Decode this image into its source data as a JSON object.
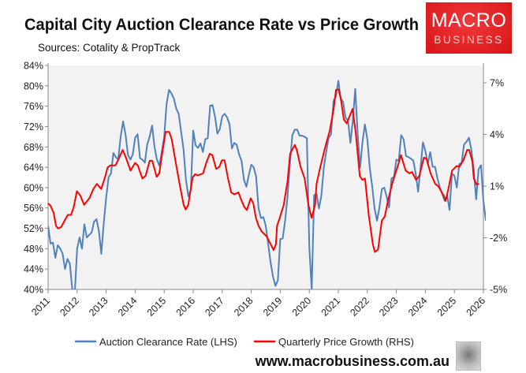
{
  "header": {
    "title": "Capital City Auction Clearance Rate vs Price Growth",
    "subtitle": "Sources: Cotality & PropTrack"
  },
  "logo": {
    "line1": "MACRO",
    "line2": "BUSINESS",
    "color": "#e3191c"
  },
  "footer": {
    "url": "www.macrobusiness.com.au"
  },
  "chart_data": {
    "type": "line",
    "title": "Capital City Auction Clearance Rate vs Price Growth",
    "xlim": [
      2011,
      2026
    ],
    "x_ticks": [
      "2011",
      "2012",
      "2013",
      "2014",
      "2015",
      "2016",
      "2017",
      "2018",
      "2019",
      "2020",
      "2021",
      "2022",
      "2023",
      "2024",
      "2025",
      "2026"
    ],
    "y_left": {
      "lim": [
        40,
        84
      ],
      "ticks": [
        "40%",
        "44%",
        "48%",
        "52%",
        "56%",
        "60%",
        "64%",
        "68%",
        "72%",
        "76%",
        "80%",
        "84%"
      ]
    },
    "y_right": {
      "lim": [
        -5,
        8
      ],
      "ticks": [
        "-5%",
        "-2%",
        "1%",
        "4%",
        "7%"
      ]
    },
    "grid": false,
    "legend": "bottom",
    "series": [
      {
        "name": "Auction Clearance Rate (LHS)",
        "axis": "left",
        "color": "#4f81bd",
        "start": "2011-01",
        "frequency": "monthly",
        "values": [
          52.5,
          49,
          49.2,
          46.2,
          48.7,
          48,
          47,
          44,
          46,
          45,
          40,
          39,
          48,
          50.2,
          48,
          52.8,
          50.2,
          50.7,
          51.2,
          53.3,
          53.8,
          51.5,
          47,
          53,
          58,
          62,
          62.8,
          66.8,
          66,
          65.5,
          70,
          73,
          70.5,
          66.5,
          65.5,
          66.5,
          69.8,
          70.5,
          65.8,
          65.5,
          64.9,
          68.5,
          70,
          72.2,
          68,
          65.5,
          64.3,
          67,
          70,
          76.5,
          79.2,
          78.5,
          77.5,
          75.5,
          74.5,
          71,
          67.5,
          61.5,
          58.3,
          59.5,
          71.2,
          68.3,
          67.8,
          68.7,
          67,
          69.5,
          69.7,
          76.1,
          76.2,
          74,
          70.6,
          71.5,
          74,
          74.5,
          73.8,
          72.5,
          67.7,
          68.8,
          68.4,
          66.5,
          65.2,
          61.5,
          60.2,
          62.5,
          64.5,
          64,
          62.2,
          56,
          54,
          54.2,
          52.5,
          48.9,
          45.3,
          42.5,
          40.7,
          41.8,
          49.9,
          50,
          53.5,
          58.2,
          64.9,
          70.3,
          71.4,
          71.4,
          70.2,
          70.2,
          70,
          69.7,
          48.4,
          40,
          58.5,
          58.8,
          55.9,
          58.5,
          63.9,
          67,
          69.8,
          70.5,
          77,
          77.9,
          81,
          77.5,
          76.8,
          73.7,
          73.2,
          68.8,
          73.2,
          79.4,
          70.6,
          63.9,
          69,
          72.4,
          69.5,
          63.9,
          60.3,
          55.9,
          53.5,
          56.1,
          59.7,
          60,
          58.2,
          56.1,
          61.8,
          62.1,
          65.5,
          65.3,
          70.3,
          69.5,
          66.2,
          66,
          65.7,
          65.3,
          62.8,
          59.2,
          63.9,
          68.9,
          67.2,
          64.6,
          67,
          64.1,
          64.1,
          61.8,
          60,
          58.7,
          57.4,
          58.5,
          55.6,
          62.8,
          62.3,
          60,
          64.6,
          64.9,
          68.5,
          69,
          69.8,
          67.5,
          63.4,
          57.7,
          63.6,
          64.4,
          57.4,
          53.5
        ]
      },
      {
        "name": "Quarterly Price Growth (RHS)",
        "axis": "right",
        "color": "#ff0000",
        "points": [
          [
            2011.0,
            0.0
          ],
          [
            2011.09,
            -0.16
          ],
          [
            2011.19,
            -0.55
          ],
          [
            2011.27,
            -1.3
          ],
          [
            2011.34,
            -1.46
          ],
          [
            2011.45,
            -1.38
          ],
          [
            2011.57,
            -1.0
          ],
          [
            2011.68,
            -0.67
          ],
          [
            2011.79,
            -0.67
          ],
          [
            2011.88,
            -0.24
          ],
          [
            2011.99,
            0.7
          ],
          [
            2012.11,
            0.45
          ],
          [
            2012.24,
            -0.09
          ],
          [
            2012.42,
            0.29
          ],
          [
            2012.56,
            0.83
          ],
          [
            2012.68,
            1.13
          ],
          [
            2012.83,
            0.83
          ],
          [
            2012.96,
            1.51
          ],
          [
            2013.05,
            2.08
          ],
          [
            2013.14,
            2.2
          ],
          [
            2013.32,
            2.2
          ],
          [
            2013.41,
            2.5
          ],
          [
            2013.57,
            3.1
          ],
          [
            2013.68,
            2.66
          ],
          [
            2013.84,
            1.9
          ],
          [
            2014.0,
            2.35
          ],
          [
            2014.09,
            2.2
          ],
          [
            2014.25,
            1.44
          ],
          [
            2014.36,
            1.6
          ],
          [
            2014.5,
            2.47
          ],
          [
            2014.59,
            2.47
          ],
          [
            2014.74,
            1.54
          ],
          [
            2014.83,
            1.74
          ],
          [
            2014.95,
            3.1
          ],
          [
            2015.05,
            4.15
          ],
          [
            2015.17,
            4.15
          ],
          [
            2015.26,
            3.72
          ],
          [
            2015.4,
            2.35
          ],
          [
            2015.53,
            1.13
          ],
          [
            2015.67,
            -0.09
          ],
          [
            2015.74,
            -0.36
          ],
          [
            2015.83,
            -0.09
          ],
          [
            2015.98,
            1.51
          ],
          [
            2016.07,
            1.69
          ],
          [
            2016.16,
            1.62
          ],
          [
            2016.34,
            1.74
          ],
          [
            2016.45,
            2.35
          ],
          [
            2016.57,
            2.88
          ],
          [
            2016.66,
            2.8
          ],
          [
            2016.79,
            2.0
          ],
          [
            2016.9,
            2.12
          ],
          [
            2016.99,
            2.5
          ],
          [
            2017.08,
            2.5
          ],
          [
            2017.2,
            1.44
          ],
          [
            2017.31,
            0.63
          ],
          [
            2017.42,
            0.52
          ],
          [
            2017.56,
            0.63
          ],
          [
            2017.65,
            0.22
          ],
          [
            2017.76,
            -0.21
          ],
          [
            2017.85,
            -0.39
          ],
          [
            2017.98,
            0.29
          ],
          [
            2018.07,
            0.0
          ],
          [
            2018.16,
            -0.84
          ],
          [
            2018.25,
            -1.3
          ],
          [
            2018.36,
            -1.64
          ],
          [
            2018.53,
            -1.92
          ],
          [
            2018.67,
            -2.38
          ],
          [
            2018.77,
            -2.71
          ],
          [
            2018.85,
            -2.38
          ],
          [
            2018.89,
            -1.3
          ],
          [
            2018.98,
            -0.85
          ],
          [
            2019.12,
            -0.09
          ],
          [
            2019.25,
            1.28
          ],
          [
            2019.34,
            2.88
          ],
          [
            2019.5,
            3.39
          ],
          [
            2019.57,
            3.1
          ],
          [
            2019.7,
            2.12
          ],
          [
            2019.84,
            1.44
          ],
          [
            2019.97,
            -0.09
          ],
          [
            2020.08,
            -0.85
          ],
          [
            2020.2,
            -0.09
          ],
          [
            2020.25,
            1.13
          ],
          [
            2020.38,
            2.12
          ],
          [
            2020.56,
            3.34
          ],
          [
            2020.7,
            4.18
          ],
          [
            2020.84,
            5.48
          ],
          [
            2020.92,
            6.59
          ],
          [
            2021.01,
            6.62
          ],
          [
            2021.1,
            5.93
          ],
          [
            2021.19,
            4.87
          ],
          [
            2021.29,
            4.64
          ],
          [
            2021.38,
            5.02
          ],
          [
            2021.49,
            5.48
          ],
          [
            2021.6,
            4.1
          ],
          [
            2021.74,
            1.59
          ],
          [
            2021.83,
            1.36
          ],
          [
            2021.92,
            1.44
          ],
          [
            2022.05,
            -0.7
          ],
          [
            2022.19,
            -2.38
          ],
          [
            2022.26,
            -2.83
          ],
          [
            2022.37,
            -2.68
          ],
          [
            2022.5,
            -1.0
          ],
          [
            2022.6,
            -0.77
          ],
          [
            2022.73,
            0.29
          ],
          [
            2022.88,
            1.28
          ],
          [
            2023.0,
            1.9
          ],
          [
            2023.16,
            2.8
          ],
          [
            2023.32,
            1.9
          ],
          [
            2023.45,
            1.74
          ],
          [
            2023.54,
            1.82
          ],
          [
            2023.68,
            1.36
          ],
          [
            2023.79,
            1.59
          ],
          [
            2023.95,
            2.66
          ],
          [
            2024.04,
            2.58
          ],
          [
            2024.18,
            1.74
          ],
          [
            2024.34,
            1.13
          ],
          [
            2024.45,
            0.98
          ],
          [
            2024.63,
            0.45
          ],
          [
            2024.7,
            0.14
          ],
          [
            2024.81,
            0.98
          ],
          [
            2024.92,
            1.9
          ],
          [
            2025.08,
            2.17
          ],
          [
            2025.17,
            2.12
          ],
          [
            2025.31,
            2.5
          ],
          [
            2025.44,
            3.1
          ],
          [
            2025.51,
            3.1
          ],
          [
            2025.62,
            2.43
          ],
          [
            2025.67,
            1.44
          ],
          [
            2025.76,
            1.1
          ],
          [
            2025.85,
            1.13
          ]
        ]
      }
    ]
  }
}
